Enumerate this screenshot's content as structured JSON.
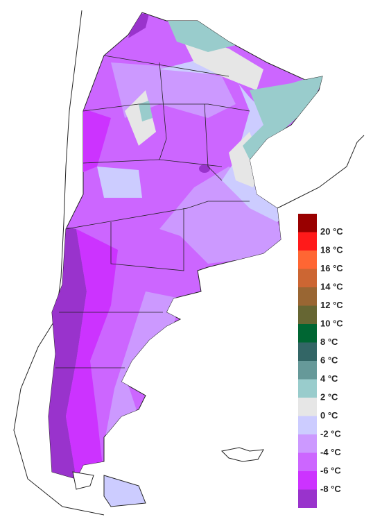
{
  "legend": {
    "labels": [
      "20 °C",
      "18 °C",
      "16 °C",
      "14 °C",
      "12 °C",
      "10 °C",
      "8 °C",
      "6 °C",
      "4 °C",
      "2 °C",
      "0 °C",
      "-2 °C",
      "-4 °C",
      "-6 °C",
      "-8 °C"
    ],
    "colors": [
      "#990000",
      "#ff1a1a",
      "#ff6633",
      "#cc6633",
      "#996633",
      "#666633",
      "#006633",
      "#336666",
      "#669999",
      "#99cccc",
      "#e6e6e6",
      "#ccccff",
      "#cc99ff",
      "#cc66ff",
      "#cc33ff",
      "#9933cc"
    ]
  }
}
